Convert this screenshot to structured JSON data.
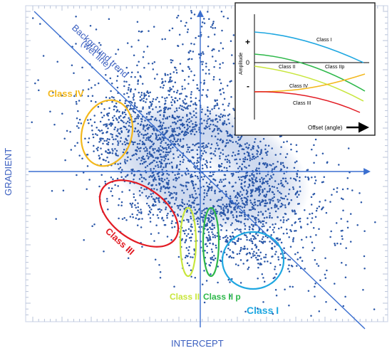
{
  "chart_data": {
    "type": "scatter",
    "xlabel": "INTERCEPT",
    "ylabel": "GRADIENT",
    "background_trend_label": [
      "Background trend",
      "(wet line)"
    ],
    "classes": [
      {
        "name": "Class I",
        "color": "#1ea7e1"
      },
      {
        "name": "Class II",
        "color": "#c8e63c"
      },
      {
        "name": "Class II p",
        "color": "#2db84a"
      },
      {
        "name": "Class III",
        "color": "#e21b23"
      },
      {
        "name": "Class IV",
        "color": "#f3b81c"
      }
    ],
    "point_color": "#2a57a8",
    "axis_color": "#3b6fd0",
    "inset": {
      "ylabel": "Amplitude",
      "xlabel": "Offset (angle)",
      "plus_label": "+",
      "zero_label": "0",
      "minus_label": "-",
      "curves": [
        {
          "name": "Class I",
          "color": "#1ea7e1"
        },
        {
          "name": "Class II",
          "color": "#2db84a"
        },
        {
          "name": "Class IIp",
          "color": "#c8e63c"
        },
        {
          "name": "Class IV",
          "color": "#f3b81c"
        },
        {
          "name": "Class III",
          "color": "#e21b23"
        }
      ]
    }
  }
}
